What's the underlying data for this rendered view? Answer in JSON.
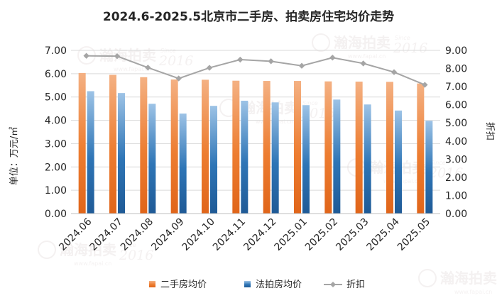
{
  "colors": {
    "bar1": "#ED7D31",
    "bar2": "#2E75B6",
    "line": "#A5A5A5",
    "grid": "#D9D9D9",
    "text": "#262626",
    "watermark": "#ECE6E6"
  },
  "watermark": {
    "brand": "瀚海拍卖",
    "since": "Since",
    "year": "2016",
    "url": "www.fapai.cn"
  },
  "chart_data": {
    "type": "bar",
    "title": "2024.6-2025.5北京市二手房、拍卖房住宅均价走势",
    "ylabel_left": "单位：万元/㎡",
    "ylabel_right": "折扣",
    "categories": [
      "2024.06",
      "2024.07",
      "2024.08",
      "2024.09",
      "2024.10",
      "2024.11",
      "2024.12",
      "2025.01",
      "2025.02",
      "2025.03",
      "2025.04",
      "2025.05"
    ],
    "series": [
      {
        "name": "二手房均价",
        "type": "bar",
        "axis": "left",
        "values": [
          6.03,
          5.95,
          5.85,
          5.75,
          5.74,
          5.7,
          5.69,
          5.69,
          5.67,
          5.66,
          5.65,
          5.58
        ]
      },
      {
        "name": "法拍房均价",
        "type": "bar",
        "axis": "left",
        "values": [
          5.25,
          5.17,
          4.71,
          4.29,
          4.62,
          4.84,
          4.77,
          4.65,
          4.89,
          4.68,
          4.42,
          3.98
        ]
      },
      {
        "name": "折扣",
        "type": "line",
        "axis": "right",
        "values": [
          8.7,
          8.68,
          8.05,
          7.45,
          8.04,
          8.49,
          8.4,
          8.15,
          8.6,
          8.28,
          7.8,
          7.1
        ]
      }
    ],
    "ylim_left": [
      0,
      7
    ],
    "yticks_left": [
      "0.00",
      "1.00",
      "2.00",
      "3.00",
      "4.00",
      "5.00",
      "6.00",
      "7.00"
    ],
    "ylim_right": [
      0,
      9
    ],
    "yticks_right": [
      "0.00",
      "1.00",
      "2.00",
      "3.00",
      "4.00",
      "5.00",
      "6.00",
      "7.00",
      "8.00",
      "9.00"
    ],
    "grid": true,
    "legend_position": "bottom"
  }
}
